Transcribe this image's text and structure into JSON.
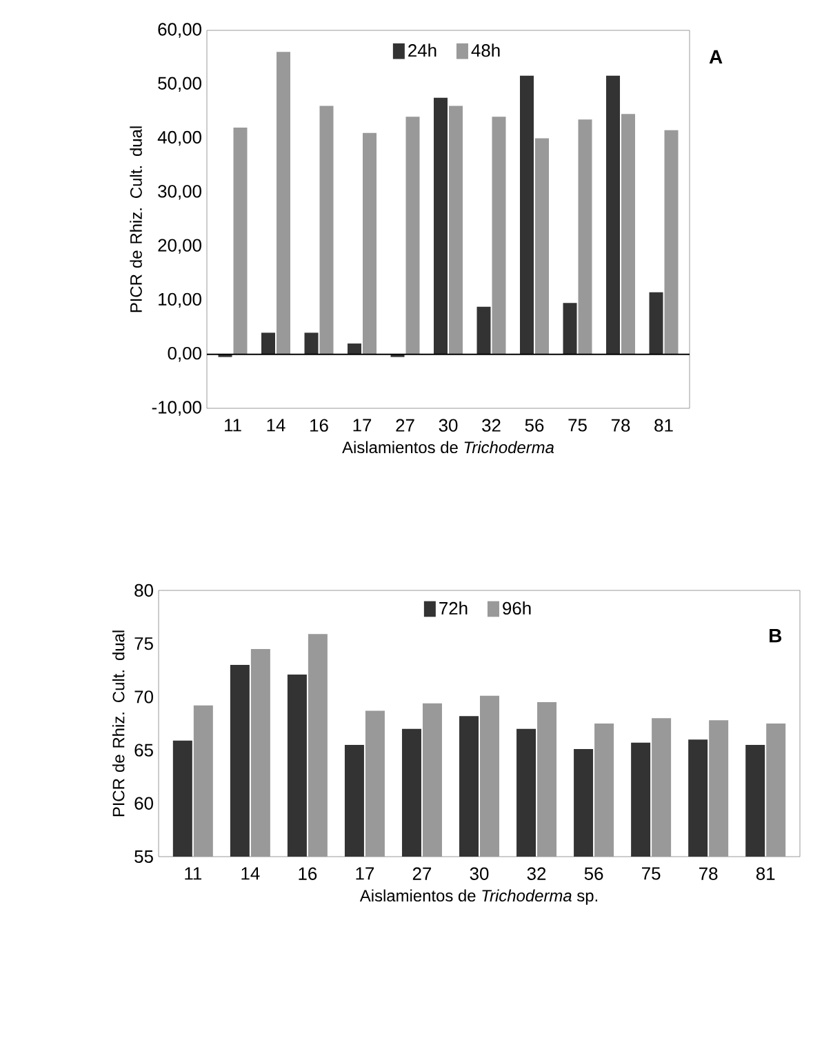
{
  "chart_data": [
    {
      "type": "bar",
      "ylabel": "PICR de Rhiz. Cult. dual",
      "xlabel": "Aislamientos de *Trichoderma*",
      "categories": [
        "11",
        "14",
        "16",
        "17",
        "27",
        "30",
        "32",
        "56",
        "75",
        "78",
        "81"
      ],
      "series": [
        {
          "name": "24h",
          "color": "#333333",
          "values": [
            -0.5,
            4,
            4,
            2,
            -0.5,
            47.5,
            8.8,
            51.6,
            9.5,
            51.6,
            11.5
          ]
        },
        {
          "name": "48h",
          "color": "#999999",
          "values": [
            42,
            56,
            46,
            41,
            44,
            46,
            44,
            40,
            43.5,
            44.5,
            41.5
          ]
        }
      ],
      "ylim": [
        -10,
        60
      ],
      "yticks": [
        {
          "value": -10,
          "label": "-10,00"
        },
        {
          "value": 0,
          "label": "0,00"
        },
        {
          "value": 10,
          "label": "10,00"
        },
        {
          "value": 20,
          "label": "20,00"
        },
        {
          "value": 30,
          "label": "30,00"
        },
        {
          "value": 40,
          "label": "40,00"
        },
        {
          "value": 50,
          "label": "50,00"
        },
        {
          "value": 60,
          "label": "60,00"
        }
      ],
      "ref_lines": [
        {
          "axis": "y",
          "value": 0
        }
      ],
      "legend": "top",
      "annotations": [
        "A"
      ]
    },
    {
      "type": "bar",
      "ylabel": "PICR de Rhiz. Cult. dual",
      "xlabel": "Aislamientos de *Trichoderma* sp.",
      "categories": [
        "11",
        "14",
        "16",
        "17",
        "27",
        "30",
        "32",
        "56",
        "75",
        "78",
        "81"
      ],
      "series": [
        {
          "name": "72h",
          "color": "#333333",
          "values": [
            65.9,
            73.0,
            72.1,
            65.5,
            67.0,
            68.2,
            67.0,
            65.1,
            65.7,
            66.0,
            65.5
          ]
        },
        {
          "name": "96h",
          "color": "#999999",
          "values": [
            69.2,
            74.5,
            75.9,
            68.7,
            69.4,
            70.1,
            69.5,
            67.5,
            68.0,
            67.8,
            67.5
          ]
        }
      ],
      "ylim": [
        55,
        80
      ],
      "yticks": [
        55,
        60,
        65,
        70,
        75,
        80
      ],
      "legend": "top",
      "annotations": [
        "B"
      ]
    }
  ]
}
